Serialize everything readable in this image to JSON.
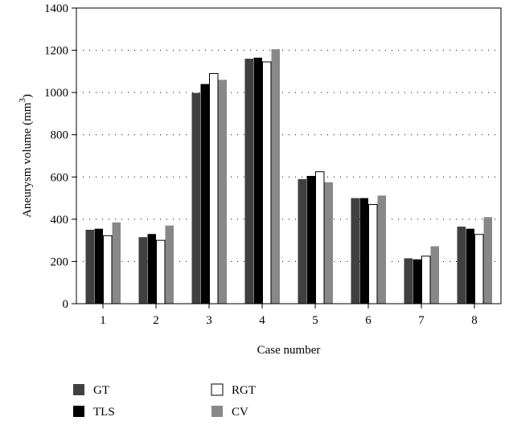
{
  "chart_data": {
    "type": "bar",
    "xlabel": "Case number",
    "ylabel_main": "Aneurysm volume (mm",
    "ylabel_sup": "3",
    "ylabel_close": ")",
    "ylim": [
      0,
      1400
    ],
    "yticks": [
      "0",
      "200",
      "400",
      "600",
      "800",
      "1000",
      "1200",
      "1400"
    ],
    "categories": [
      "1",
      "2",
      "3",
      "4",
      "5",
      "6",
      "7",
      "8"
    ],
    "grid": "horizontal dotted",
    "legend_position": "bottom-left",
    "series": [
      {
        "name": "GT",
        "color": "#404040",
        "values": [
          350,
          315,
          998,
          1160,
          590,
          500,
          215,
          365
        ]
      },
      {
        "name": "TLS",
        "color": "#000000",
        "values": [
          355,
          330,
          1040,
          1165,
          605,
          500,
          210,
          355
        ]
      },
      {
        "name": "RGT",
        "color": "#ffffff",
        "values": [
          322,
          300,
          1090,
          1145,
          625,
          470,
          225,
          328
        ]
      },
      {
        "name": "CV",
        "color": "#888888",
        "values": [
          385,
          370,
          1060,
          1205,
          575,
          512,
          272,
          410
        ]
      }
    ]
  }
}
